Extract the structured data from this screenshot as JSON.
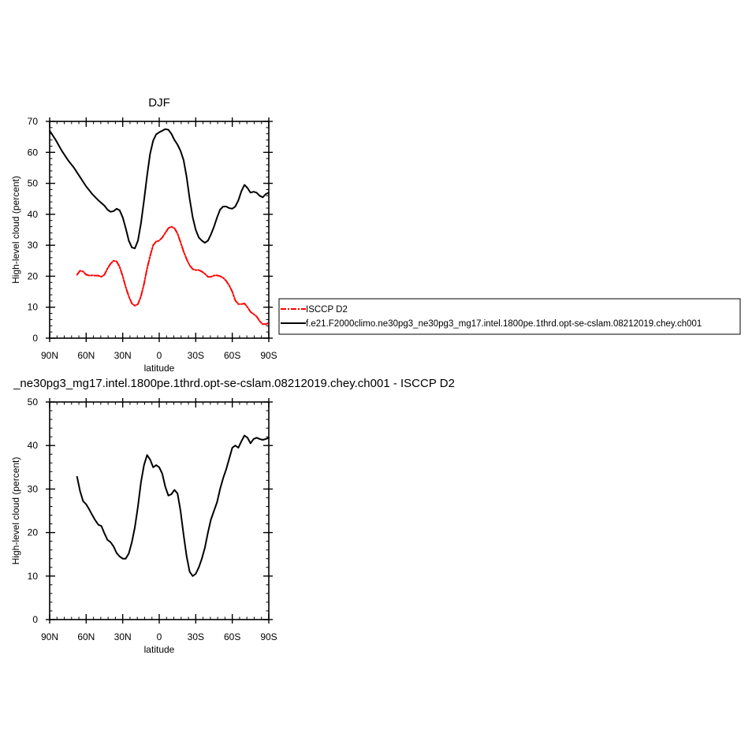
{
  "chart_data": [
    {
      "type": "line",
      "title": "DJF",
      "xlabel": "latitude",
      "ylabel": "High-level cloud (percent)",
      "xlim": [
        90,
        -90
      ],
      "ylim": [
        0,
        70
      ],
      "xticks": [
        90,
        60,
        30,
        0,
        -30,
        -60,
        -90
      ],
      "xtick_labels": [
        "90N",
        "60N",
        "30N",
        "0",
        "30S",
        "60S",
        "90S"
      ],
      "yticks": [
        0,
        10,
        20,
        30,
        40,
        50,
        60,
        70
      ],
      "ytick_labels": [
        "0",
        "10",
        "20",
        "30",
        "40",
        "50",
        "60",
        "70"
      ],
      "legend": {
        "position": "right",
        "entries": [
          "ISCCP D2",
          "f.e21.F2000climo.ne30pg3_ne30pg3_mg17.intel.1800pe.1thrd.opt-se-cslam.08212019.chey.ch001"
        ]
      },
      "series": [
        {
          "name": "ISCCP D2",
          "color": "#ff0000",
          "dash": true,
          "x": [
            67.5,
            65,
            62.5,
            60,
            57.5,
            55,
            52.5,
            50,
            47.5,
            45,
            42.5,
            40,
            37.5,
            35,
            32.5,
            30,
            27.5,
            25,
            22.5,
            20,
            17.5,
            15,
            12.5,
            10,
            7.5,
            5,
            2.5,
            0,
            -2.5,
            -5,
            -7.5,
            -10,
            -12.5,
            -15,
            -17.5,
            -20,
            -22.5,
            -25,
            -27.5,
            -30,
            -32.5,
            -35,
            -37.5,
            -40,
            -42.5,
            -45,
            -47.5,
            -50,
            -52.5,
            -55,
            -57.5,
            -60,
            -62.5,
            -65,
            -67.5,
            -70,
            -72.5,
            -75,
            -77.5,
            -80,
            -82.5,
            -85,
            -87.5,
            -90
          ],
          "values": [
            20.5,
            21.8,
            21.5,
            20.5,
            20.2,
            20.3,
            20.2,
            20.2,
            19.8,
            20.5,
            22.5,
            24.0,
            25.0,
            24.8,
            23.0,
            20.0,
            16.5,
            13.5,
            11.2,
            10.5,
            11.0,
            13.5,
            17.5,
            22.5,
            26.5,
            30.0,
            31.2,
            31.5,
            32.5,
            34.0,
            35.5,
            36.0,
            35.5,
            33.8,
            31.0,
            28.0,
            25.5,
            23.5,
            22.3,
            22.0,
            22.0,
            21.5,
            20.8,
            19.8,
            19.8,
            20.2,
            20.3,
            20.0,
            19.5,
            18.5,
            17.0,
            15.0,
            12.2,
            11.0,
            11.0,
            11.2,
            10.0,
            8.5,
            7.8,
            7.0,
            5.5,
            4.5,
            4.5,
            5.0
          ]
        },
        {
          "name": "f.e21.F2000climo.ne30pg3_ne30pg3_mg17.intel.1800pe.1thrd.opt-se-cslam.08212019.chey.ch001",
          "color": "#000000",
          "dash": false,
          "x": [
            90,
            85,
            80,
            75,
            70,
            65,
            60,
            55,
            50,
            45,
            42.5,
            40,
            37.5,
            35,
            32.5,
            30,
            27.5,
            25,
            22.5,
            20,
            17.5,
            15,
            12.5,
            10,
            7.5,
            5,
            2.5,
            0,
            -2.5,
            -5,
            -7.5,
            -10,
            -12.5,
            -15,
            -17.5,
            -20,
            -22.5,
            -25,
            -27.5,
            -30,
            -32.5,
            -35,
            -37.5,
            -40,
            -42.5,
            -45,
            -47.5,
            -50,
            -52.5,
            -55,
            -57.5,
            -60,
            -62.5,
            -65,
            -67.5,
            -70,
            -72.5,
            -75,
            -77.5,
            -80,
            -82.5,
            -85,
            -87.5,
            -90
          ],
          "values": [
            67.0,
            64.0,
            60.5,
            57.5,
            55.0,
            52.0,
            49.0,
            46.5,
            44.5,
            42.8,
            41.5,
            40.8,
            41.0,
            41.8,
            41.3,
            39.0,
            35.5,
            31.5,
            29.3,
            29.0,
            31.5,
            37.0,
            44.5,
            52.5,
            59.5,
            63.8,
            65.8,
            66.5,
            67.0,
            67.5,
            67.3,
            66.0,
            64.0,
            62.5,
            60.5,
            57.5,
            52.0,
            45.0,
            39.0,
            35.0,
            32.5,
            31.5,
            30.8,
            31.5,
            33.5,
            36.0,
            39.0,
            41.5,
            42.5,
            42.5,
            42.0,
            41.8,
            42.5,
            44.5,
            47.5,
            49.5,
            48.5,
            47.0,
            47.3,
            47.0,
            46.0,
            45.5,
            46.5,
            47.0
          ]
        }
      ]
    },
    {
      "type": "line",
      "title": "_ne30pg3_mg17.intel.1800pe.1thrd.opt-se-cslam.08212019.chey.ch001 - ISCCP D2",
      "xlabel": "latitude",
      "ylabel": "High-level cloud (percent)",
      "xlim": [
        90,
        -90
      ],
      "ylim": [
        0,
        50
      ],
      "xticks": [
        90,
        60,
        30,
        0,
        -30,
        -60,
        -90
      ],
      "xtick_labels": [
        "90N",
        "60N",
        "30N",
        "0",
        "30S",
        "60S",
        "90S"
      ],
      "yticks": [
        0,
        10,
        20,
        30,
        40,
        50
      ],
      "ytick_labels": [
        "0",
        "10",
        "20",
        "30",
        "40",
        "50"
      ],
      "series": [
        {
          "color": "#000000",
          "dash": false,
          "x": [
            67.5,
            65,
            62.5,
            60,
            57.5,
            55,
            52.5,
            50,
            47.5,
            45,
            42.5,
            40,
            37.5,
            35,
            32.5,
            30,
            27.5,
            25,
            22.5,
            20,
            17.5,
            15,
            12.5,
            10,
            7.5,
            5,
            2.5,
            0,
            -2.5,
            -5,
            -7.5,
            -10,
            -12.5,
            -15,
            -17.5,
            -20,
            -22.5,
            -25,
            -27.5,
            -30,
            -32.5,
            -35,
            -37.5,
            -40,
            -42.5,
            -45,
            -47.5,
            -50,
            -52.5,
            -55,
            -57.5,
            -60,
            -62.5,
            -65,
            -67.5,
            -70,
            -72.5,
            -75,
            -77.5,
            -80,
            -82.5,
            -85,
            -87.5,
            -90
          ],
          "values": [
            32.8,
            29.5,
            27.2,
            26.5,
            25.3,
            24.0,
            22.8,
            21.8,
            21.5,
            19.8,
            18.3,
            17.8,
            16.8,
            15.3,
            14.5,
            14.0,
            14.0,
            15.2,
            17.8,
            21.2,
            26.0,
            31.5,
            35.5,
            37.8,
            36.8,
            35.0,
            35.5,
            35.0,
            33.5,
            30.5,
            28.5,
            28.8,
            29.8,
            29.0,
            25.0,
            19.5,
            14.5,
            11.0,
            10.0,
            10.5,
            12.0,
            14.0,
            16.5,
            20.0,
            23.0,
            25.0,
            27.0,
            30.0,
            32.5,
            34.5,
            37.0,
            39.5,
            40.0,
            39.5,
            41.0,
            42.3,
            41.8,
            40.5,
            41.5,
            41.8,
            41.5,
            41.3,
            41.5,
            41.8
          ]
        }
      ]
    }
  ]
}
